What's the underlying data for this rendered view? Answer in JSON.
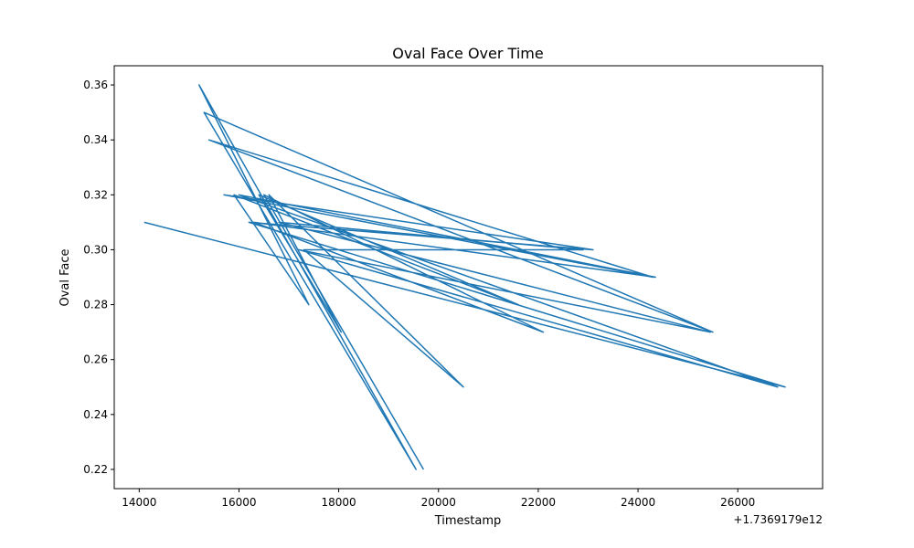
{
  "chart_data": {
    "type": "line",
    "title": "Oval Face Over Time",
    "xlabel": "Timestamp",
    "ylabel": "Oval Face",
    "x_offset_label": "+1.7369179e12",
    "xlim": [
      13500,
      27700
    ],
    "ylim": [
      0.213,
      0.367
    ],
    "xticks": [
      14000,
      16000,
      18000,
      20000,
      22000,
      24000,
      26000,
      28000
    ],
    "xtick_labels": [
      "14000",
      "16000",
      "18000",
      "20000",
      "22000",
      "24000",
      "26000"
    ],
    "yticks": [
      0.22,
      0.24,
      0.26,
      0.28,
      0.3,
      0.32,
      0.34,
      0.36
    ],
    "ytick_labels": [
      "0.22",
      "0.24",
      "0.26",
      "0.28",
      "0.30",
      "0.32",
      "0.34",
      "0.36"
    ],
    "grid": false,
    "series": [
      {
        "color": "#1f77b4",
        "x": [
          14100,
          26950,
          16200,
          23100,
          15700,
          24300,
          15400,
          25500,
          15300,
          19550,
          15200,
          17400,
          15900,
          21600,
          16400,
          18050,
          16600,
          20500,
          17300,
          22900,
          16800,
          25450,
          17200,
          26800,
          16000,
          24350,
          16300,
          22100,
          16500,
          19700
        ],
        "y": [
          0.31,
          0.25,
          0.31,
          0.3,
          0.32,
          0.29,
          0.34,
          0.27,
          0.35,
          0.22,
          0.36,
          0.28,
          0.32,
          0.28,
          0.32,
          0.27,
          0.32,
          0.25,
          0.3,
          0.3,
          0.31,
          0.27,
          0.3,
          0.25,
          0.32,
          0.29,
          0.31,
          0.27,
          0.32,
          0.22
        ]
      }
    ]
  }
}
